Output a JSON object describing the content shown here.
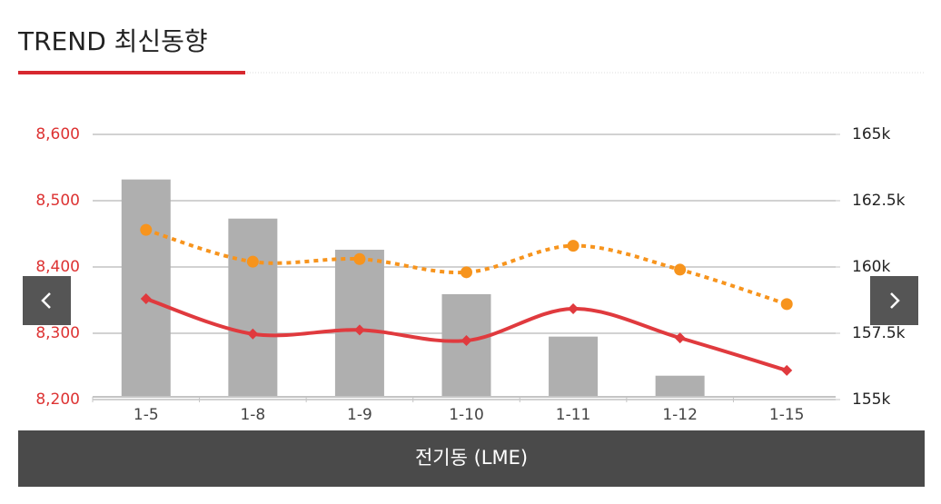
{
  "header": {
    "title": "TREND 최신동향"
  },
  "chart_data": {
    "type": "bar-line",
    "categories": [
      "1-5",
      "1-8",
      "1-9",
      "1-10",
      "1-11",
      "1-12",
      "1-15"
    ],
    "series": [
      {
        "type": "bar",
        "color": "#afafaf",
        "values": [
          8532,
          8473,
          8426,
          8359,
          8295,
          8236,
          null
        ]
      },
      {
        "type": "line",
        "color": "#e03a3e",
        "marker": "diamond",
        "values": [
          8352,
          8299,
          8305,
          8289,
          8337,
          8293,
          8244
        ]
      },
      {
        "type": "line",
        "color": "#f7941d",
        "marker": "circle",
        "dashed": true,
        "axis": "y2",
        "values": [
          161400,
          160200,
          160300,
          159800,
          160800,
          159900,
          158600
        ]
      }
    ],
    "ylim": [
      8200,
      8600
    ],
    "yticks": [
      {
        "value": 8200,
        "label": "8,200"
      },
      {
        "value": 8300,
        "label": "8,300"
      },
      {
        "value": 8400,
        "label": "8,400"
      },
      {
        "value": 8500,
        "label": "8,500"
      },
      {
        "value": 8600,
        "label": "8,600"
      }
    ],
    "y2lim": [
      155000,
      165000
    ],
    "y2ticks": [
      {
        "value": 155000,
        "label": "155k"
      },
      {
        "value": 157500,
        "label": "157.5k"
      },
      {
        "value": 160000,
        "label": "160k"
      },
      {
        "value": 162500,
        "label": "162.5k"
      },
      {
        "value": 165000,
        "label": "165k"
      }
    ],
    "grid": true,
    "caption": "전기동 (LME)"
  }
}
